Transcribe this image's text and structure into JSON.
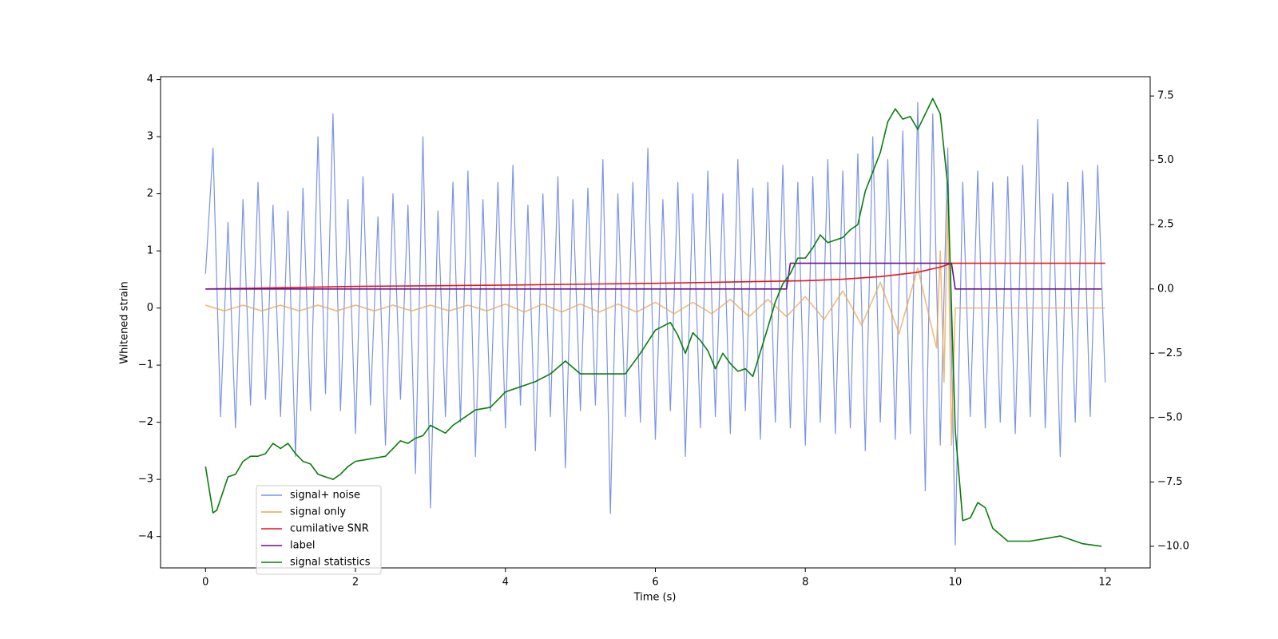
{
  "chart_data": {
    "type": "line",
    "xlabel": "Time (s)",
    "ylabel": "Whitened strain",
    "xlim": [
      -0.6,
      12.6
    ],
    "ylim": [
      -4.55,
      4.05
    ],
    "y2lim": [
      -10.84,
      8.25
    ],
    "xticks": [
      0,
      2,
      4,
      6,
      8,
      10,
      12
    ],
    "yticks": [
      {
        "value": -4,
        "label": "−4"
      },
      {
        "value": -3,
        "label": "−3"
      },
      {
        "value": -2,
        "label": "−2"
      },
      {
        "value": -1,
        "label": "−1"
      },
      0,
      1,
      2,
      3,
      4
    ],
    "y2ticks": [
      {
        "value": -10,
        "label": "−10.0"
      },
      {
        "value": -7.5,
        "label": "−7.5"
      },
      {
        "value": -5,
        "label": "−5.0"
      },
      {
        "value": -2.5,
        "label": "−2.5"
      },
      {
        "value": 0,
        "label": "0.0"
      },
      {
        "value": 2.5,
        "label": "2.5"
      },
      {
        "value": 5,
        "label": "5.0"
      },
      {
        "value": 7.5,
        "label": "7.5"
      }
    ],
    "legend": "lower left",
    "series": [
      {
        "name": "signal+ noise",
        "color": "#7b93e6",
        "x": [
          0,
          0.1,
          0.2,
          0.3,
          0.4,
          0.5,
          0.6,
          0.7,
          0.8,
          0.9,
          1,
          1.1,
          1.2,
          1.3,
          1.4,
          1.5,
          1.6,
          1.7,
          1.8,
          1.9,
          2,
          2.1,
          2.2,
          2.3,
          2.4,
          2.5,
          2.6,
          2.7,
          2.8,
          2.9,
          3,
          3.1,
          3.2,
          3.3,
          3.4,
          3.5,
          3.6,
          3.7,
          3.8,
          3.9,
          4,
          4.1,
          4.2,
          4.3,
          4.4,
          4.5,
          4.6,
          4.7,
          4.8,
          4.9,
          5,
          5.1,
          5.2,
          5.3,
          5.4,
          5.5,
          5.6,
          5.7,
          5.8,
          5.9,
          6,
          6.1,
          6.2,
          6.3,
          6.4,
          6.5,
          6.6,
          6.7,
          6.8,
          6.9,
          7,
          7.1,
          7.2,
          7.3,
          7.4,
          7.5,
          7.6,
          7.7,
          7.8,
          7.9,
          8,
          8.1,
          8.2,
          8.3,
          8.4,
          8.5,
          8.6,
          8.7,
          8.8,
          8.9,
          9,
          9.1,
          9.2,
          9.3,
          9.4,
          9.5,
          9.6,
          9.7,
          9.8,
          9.9,
          10,
          10.1,
          10.2,
          10.3,
          10.4,
          10.5,
          10.6,
          10.7,
          10.8,
          10.9,
          11,
          11.1,
          11.2,
          11.3,
          11.4,
          11.5,
          11.6,
          11.7,
          11.8,
          11.9,
          12
        ],
        "values": [
          0.6,
          2.8,
          -1.9,
          1.5,
          -2.1,
          1.9,
          -1.7,
          2.2,
          -1.6,
          1.8,
          -1.9,
          1.7,
          -2.6,
          2.1,
          -1.8,
          3.0,
          -1.5,
          3.4,
          -1.8,
          1.9,
          -2.2,
          2.3,
          -1.7,
          1.6,
          -2.4,
          2.0,
          -1.6,
          1.8,
          -2.9,
          3.0,
          -3.5,
          1.7,
          -1.9,
          2.2,
          -2.0,
          2.4,
          -2.6,
          1.9,
          -1.8,
          2.2,
          -2.1,
          2.5,
          -1.7,
          1.8,
          -2.5,
          2.0,
          -1.9,
          2.3,
          -2.8,
          1.9,
          -1.8,
          2.1,
          -1.7,
          2.6,
          -3.6,
          2.0,
          -1.9,
          2.2,
          -2.0,
          2.8,
          -2.3,
          1.9,
          -1.8,
          2.2,
          -2.6,
          2.0,
          -2.1,
          2.4,
          -1.9,
          2.0,
          -2.2,
          2.6,
          -1.8,
          2.1,
          -2.3,
          2.2,
          -2.0,
          2.5,
          -2.1,
          2.2,
          -2.4,
          2.3,
          -2.0,
          2.6,
          -2.2,
          2.4,
          -2.1,
          2.7,
          -2.5,
          3.0,
          -2.0,
          2.6,
          -2.3,
          3.1,
          -2.2,
          3.6,
          -3.2,
          3.4,
          -2.4,
          2.8,
          -4.15,
          2.2,
          -1.9,
          2.4,
          -2.1,
          2.2,
          -2.0,
          2.3,
          -2.2,
          2.5,
          -1.9,
          3.3,
          -2.1,
          2.0,
          -2.6,
          2.2,
          -2.0,
          2.4,
          -1.9,
          2.5,
          -1.3
        ]
      },
      {
        "name": "signal only",
        "color": "#e8a650",
        "x": [
          0,
          0.25,
          0.5,
          0.75,
          1,
          1.25,
          1.5,
          1.75,
          2,
          2.25,
          2.5,
          2.75,
          3,
          3.25,
          3.5,
          3.75,
          4,
          4.25,
          4.5,
          4.75,
          5,
          5.25,
          5.5,
          5.75,
          6,
          6.25,
          6.5,
          6.75,
          7,
          7.25,
          7.5,
          7.75,
          8,
          8.25,
          8.5,
          8.75,
          9,
          9.25,
          9.5,
          9.75,
          9.8,
          9.85,
          9.9,
          9.95,
          10,
          12
        ],
        "values": [
          0.05,
          -0.05,
          0.05,
          -0.05,
          0.05,
          -0.05,
          0.05,
          -0.05,
          0.05,
          -0.05,
          0.05,
          -0.05,
          0.05,
          -0.05,
          0.05,
          -0.05,
          0.07,
          -0.07,
          0.07,
          -0.07,
          0.07,
          -0.07,
          0.07,
          -0.07,
          0.1,
          -0.1,
          0.1,
          -0.1,
          0.15,
          -0.15,
          0.15,
          -0.15,
          0.2,
          -0.2,
          0.3,
          -0.3,
          0.45,
          -0.45,
          0.7,
          -0.7,
          1.0,
          -1.3,
          1.9,
          -2.4,
          0,
          0
        ]
      },
      {
        "name": "cumilative SNR",
        "color": "#e8141a",
        "axis": "y2",
        "x": [
          0,
          2,
          4,
          6,
          7,
          8,
          8.5,
          9,
          9.5,
          9.8,
          9.95,
          12
        ],
        "values": [
          0,
          0.1,
          0.15,
          0.22,
          0.27,
          0.32,
          0.38,
          0.48,
          0.65,
          0.85,
          1.0,
          1.0
        ]
      },
      {
        "name": "label",
        "color": "#6a0f8a",
        "axis": "y2",
        "x": [
          0,
          7.75,
          7.8,
          9.95,
          10.0,
          11.95
        ],
        "values": [
          0,
          0,
          1,
          1,
          0,
          0
        ]
      },
      {
        "name": "signal statistics",
        "color": "#0a7d0a",
        "axis": "y2",
        "x": [
          0,
          0.1,
          0.15,
          0.3,
          0.4,
          0.5,
          0.6,
          0.7,
          0.8,
          0.9,
          1.0,
          1.1,
          1.2,
          1.3,
          1.4,
          1.5,
          1.6,
          1.7,
          1.8,
          1.9,
          2.0,
          2.2,
          2.4,
          2.5,
          2.6,
          2.7,
          2.8,
          2.9,
          3.0,
          3.2,
          3.3,
          3.4,
          3.6,
          3.8,
          4.0,
          4.2,
          4.4,
          4.6,
          4.8,
          5.0,
          5.2,
          5.4,
          5.6,
          5.8,
          6.0,
          6.2,
          6.3,
          6.4,
          6.5,
          6.6,
          6.7,
          6.8,
          6.9,
          7.0,
          7.1,
          7.2,
          7.3,
          7.5,
          7.6,
          7.7,
          7.8,
          7.9,
          8.0,
          8.1,
          8.2,
          8.3,
          8.5,
          8.6,
          8.7,
          8.8,
          9.0,
          9.1,
          9.2,
          9.3,
          9.4,
          9.5,
          9.7,
          9.8,
          9.9,
          10.0,
          10.1,
          10.2,
          10.3,
          10.4,
          10.5,
          10.7,
          11.0,
          11.4,
          11.7,
          11.95
        ],
        "values": [
          -6.9,
          -8.7,
          -8.6,
          -7.3,
          -7.2,
          -6.7,
          -6.5,
          -6.5,
          -6.4,
          -6.0,
          -6.2,
          -6.0,
          -6.4,
          -6.7,
          -6.8,
          -7.2,
          -7.3,
          -7.4,
          -7.2,
          -6.9,
          -6.7,
          -6.6,
          -6.5,
          -6.2,
          -5.9,
          -6.0,
          -5.8,
          -5.7,
          -5.3,
          -5.6,
          -5.3,
          -5.1,
          -4.7,
          -4.6,
          -4.0,
          -3.8,
          -3.6,
          -3.3,
          -2.8,
          -3.3,
          -3.3,
          -3.3,
          -3.3,
          -2.5,
          -1.6,
          -1.3,
          -1.8,
          -2.5,
          -1.7,
          -2.0,
          -2.4,
          -3.1,
          -2.5,
          -2.9,
          -3.2,
          -3.1,
          -3.4,
          -1.5,
          -0.5,
          0.2,
          0.6,
          1.2,
          1.2,
          1.6,
          2.1,
          1.8,
          2.0,
          2.3,
          2.5,
          3.8,
          5.3,
          6.5,
          7.0,
          6.6,
          6.7,
          6.2,
          7.4,
          6.8,
          4.0,
          -5.5,
          -9.0,
          -8.9,
          -8.3,
          -8.5,
          -9.3,
          -9.8,
          -9.8,
          -9.6,
          -9.9,
          -10.0
        ]
      }
    ]
  }
}
